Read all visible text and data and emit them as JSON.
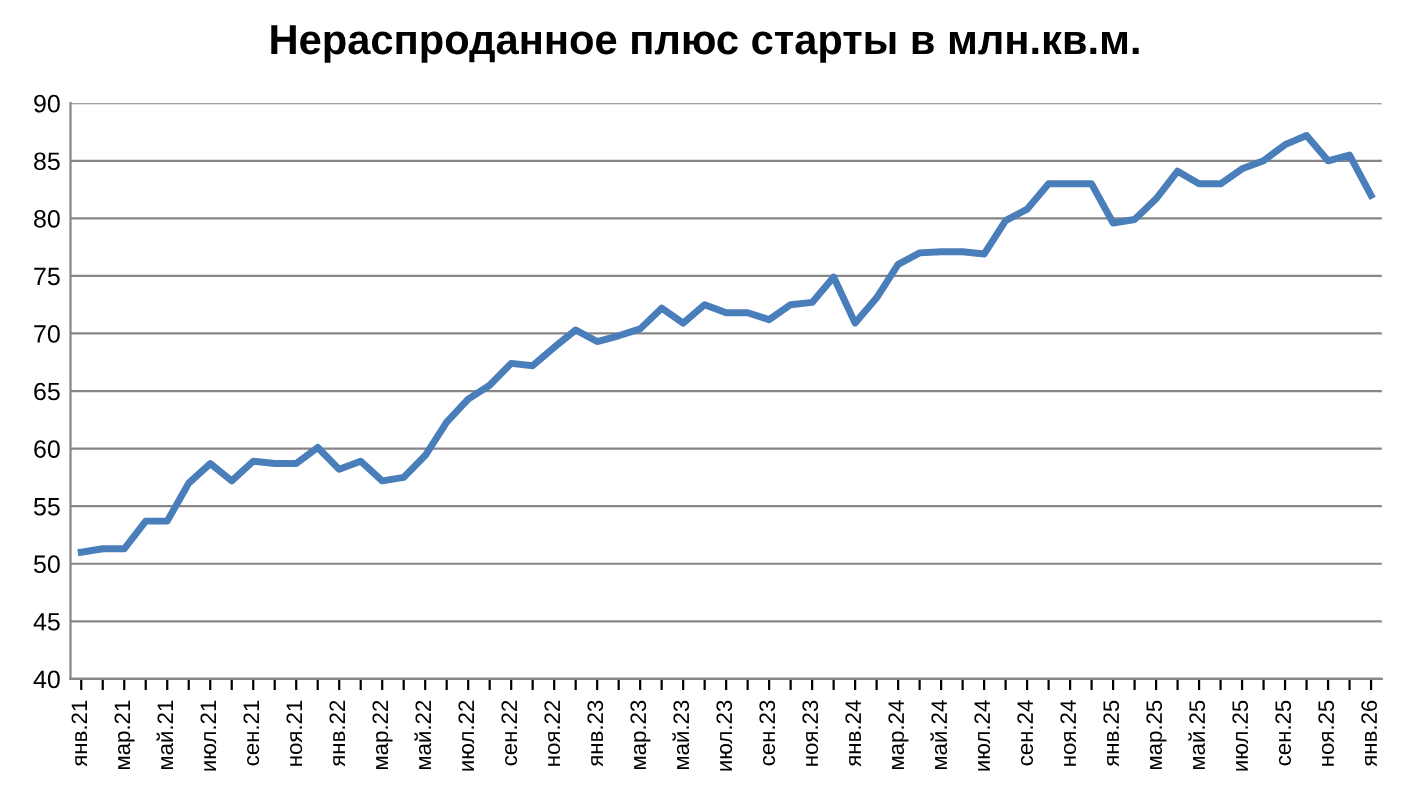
{
  "chart_data": {
    "type": "line",
    "title": "Нераспроданное плюс старты в млн.кв.м.",
    "categories": [
      "янв.21",
      null,
      "мар.21",
      null,
      "май.21",
      null,
      "июл.21",
      null,
      "сен.21",
      null,
      "ноя.21",
      null,
      "янв.22",
      null,
      "мар.22",
      null,
      "май.22",
      null,
      "июл.22",
      null,
      "сен.22",
      null,
      "ноя.22",
      null,
      "янв.23",
      null,
      "мар.23",
      null,
      "май.23",
      null,
      "июл.23",
      null,
      "сен.23",
      null,
      "ноя.23",
      null,
      "янв.24",
      null,
      "мар.24",
      null,
      "май.24",
      null,
      "июл.24",
      null,
      "сен.24",
      null,
      "ноя.24",
      null,
      "янв.25",
      null,
      "мар.25",
      null,
      "май.25",
      null,
      "июл.25",
      null,
      "сен.25",
      null,
      "ноя.25",
      null,
      "янв.26"
    ],
    "series": [
      {
        "color": "#4a7ebb",
        "values": [
          51.0,
          51.3,
          51.3,
          53.7,
          53.7,
          57.0,
          58.7,
          57.2,
          58.9,
          58.7,
          58.7,
          60.1,
          58.2,
          58.9,
          57.2,
          57.5,
          59.4,
          62.3,
          64.3,
          65.5,
          67.4,
          67.2,
          68.8,
          70.3,
          69.3,
          69.8,
          70.4,
          72.2,
          70.9,
          72.5,
          71.8,
          71.8,
          71.2,
          72.5,
          72.7,
          74.9,
          70.9,
          73.1,
          76.0,
          77.0,
          77.1,
          77.1,
          76.9,
          79.8,
          80.8,
          83.0,
          83.0,
          83.0,
          79.6,
          79.9,
          81.7,
          84.1,
          83.0,
          83.0,
          84.3,
          85.0,
          86.4,
          87.2,
          85.0,
          85.5,
          82.0
        ]
      }
    ],
    "ylim": [
      40,
      90
    ],
    "yticks": [
      40,
      45,
      50,
      55,
      60,
      65,
      70,
      75,
      80,
      85,
      90
    ],
    "grid": "y",
    "marker": "none",
    "line_style": "solid"
  }
}
